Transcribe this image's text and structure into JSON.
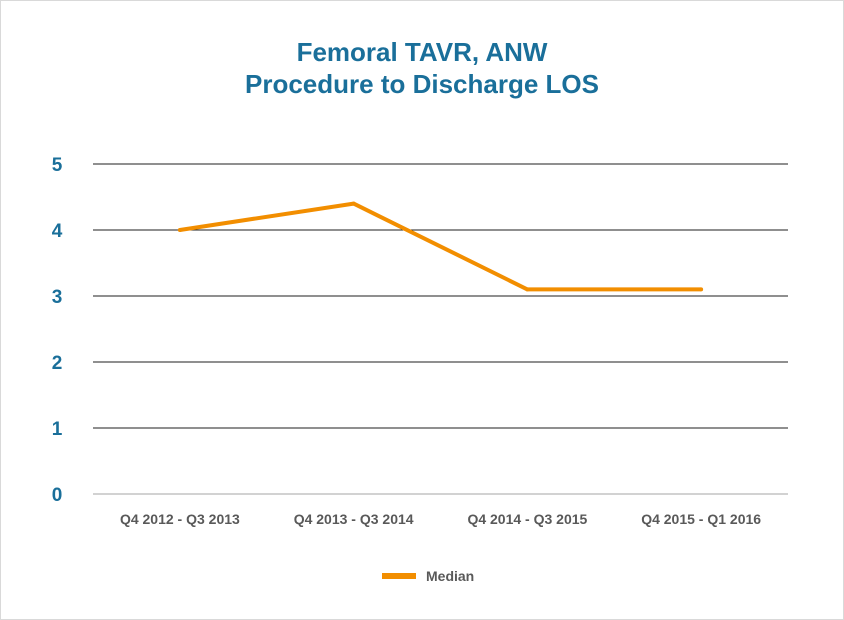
{
  "chart_data": {
    "type": "line",
    "title": "Femoral TAVR, ANW",
    "subtitle": "Procedure to Discharge LOS",
    "xlabel": "",
    "ylabel": "",
    "categories": [
      "Q4 2012 - Q3 2013",
      "Q4 2013 - Q3 2014",
      "Q4 2014 - Q3 2015",
      "Q4 2015 - Q1 2016"
    ],
    "series": [
      {
        "name": "Median",
        "values": [
          4.0,
          4.4,
          3.1,
          3.1
        ],
        "color": "#f28e00"
      }
    ],
    "ylim": [
      0,
      5
    ],
    "yticks": [
      0,
      1,
      2,
      3,
      4,
      5
    ],
    "grid": true,
    "legend": "bottom-center"
  }
}
